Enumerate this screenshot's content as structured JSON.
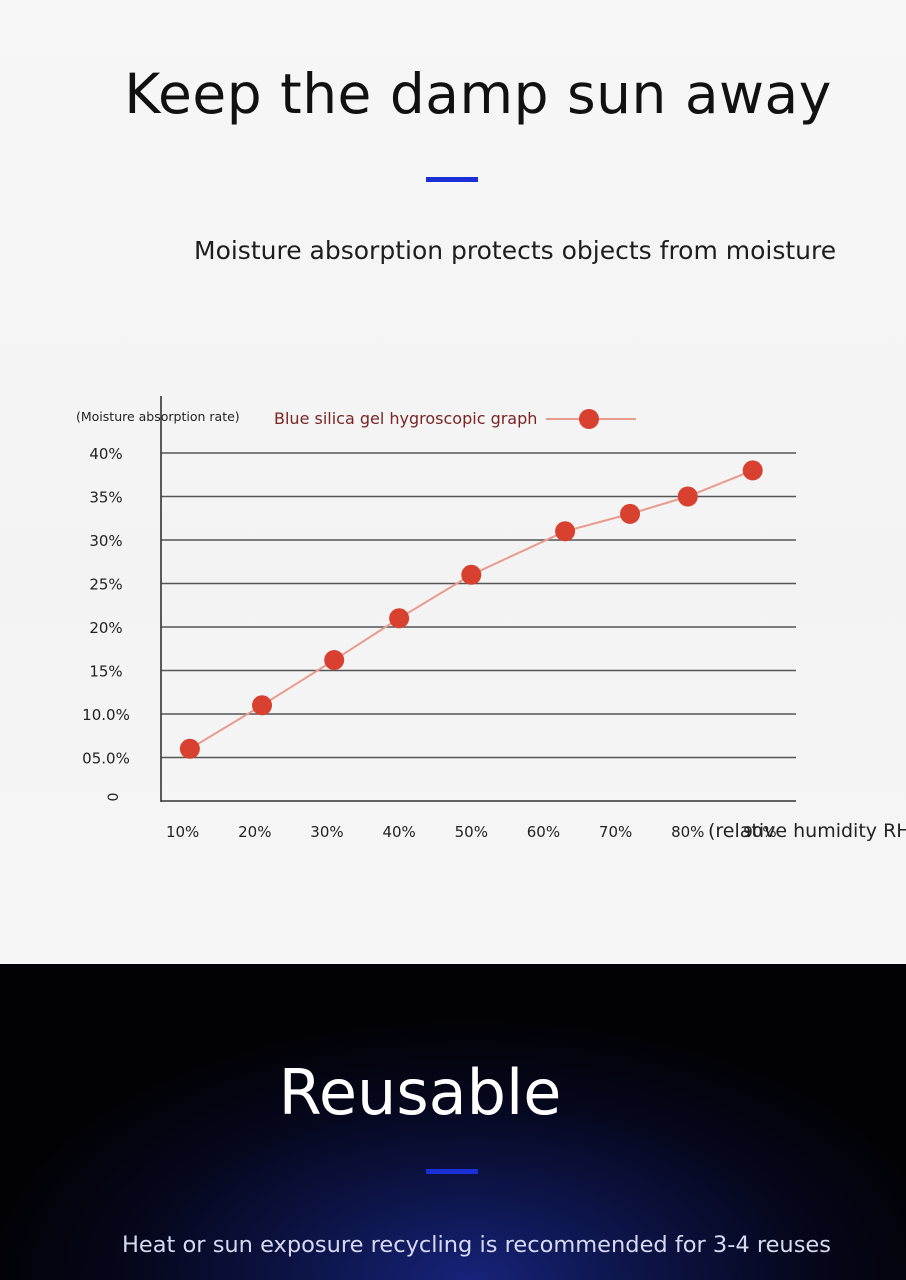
{
  "header": {
    "title": "Keep the damp sun away",
    "subtitle": "Moisture absorption protects objects from moisture"
  },
  "footer": {
    "title": "Reusable",
    "caption": "Heat or sun exposure recycling is recommended for 3-4 reuses"
  },
  "colors": {
    "accent": "#1a2fd6",
    "series_line": "#e89a8e",
    "series_marker": "#d8402f",
    "legend_text": "#7a2424",
    "grid": "#555555"
  },
  "chart_data": {
    "type": "line",
    "ylabel": "(Moisture absorption rate)",
    "xlabel": "(relative humidity RH)",
    "y_tick_labels": [
      "0",
      "05.0%",
      "10.0%",
      "15%",
      "20%",
      "25%",
      "30%",
      "35%",
      "40%"
    ],
    "y_ticks": [
      0,
      5,
      10,
      15,
      20,
      25,
      30,
      35,
      40
    ],
    "x_tick_labels": [
      "10%",
      "20%",
      "30%",
      "40%",
      "50%",
      "60%",
      "70%",
      "80%",
      "90%"
    ],
    "x_ticks": [
      10,
      20,
      30,
      40,
      50,
      60,
      70,
      80,
      90
    ],
    "ylim": [
      0,
      40
    ],
    "xlim": [
      7,
      95
    ],
    "grid": true,
    "legend_position": "top",
    "series": [
      {
        "name": "Blue silica gel hygroscopic graph",
        "x": [
          11,
          21,
          31,
          40,
          50,
          63,
          72,
          80,
          89
        ],
        "y": [
          6,
          11,
          16.2,
          21,
          26,
          31,
          33,
          35,
          38
        ]
      }
    ]
  }
}
